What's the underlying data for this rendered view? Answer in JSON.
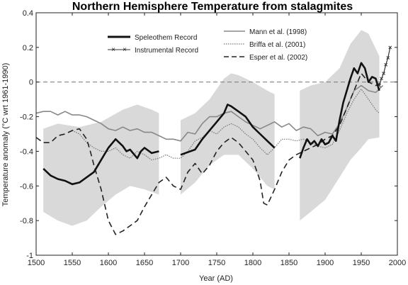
{
  "chart_data": {
    "type": "line",
    "title": "Northern Hemisphere Temperature from stalagmites",
    "xlabel": "Year (AD)",
    "ylabel": "Temperature anomaly (°C wrt 1961-1990)",
    "xlim": [
      1500,
      2000
    ],
    "ylim": [
      -1,
      0.4
    ],
    "xticks": [
      1500,
      1550,
      1600,
      1650,
      1700,
      1750,
      1800,
      1850,
      1900,
      1950,
      2000
    ],
    "yticks": [
      0.4,
      0.2,
      0,
      -0.2,
      -0.4,
      -0.6,
      -0.8,
      -1
    ],
    "ytick_labels": [
      "0.4",
      "0.2",
      "0",
      "-0.2",
      "-0.4",
      "-0.6",
      "-0.8",
      "-1"
    ],
    "zero_line": "dashed",
    "grid": false,
    "legend_left": [
      "Speleothem Record",
      "Instrumental Record"
    ],
    "legend_right": [
      "Mann et al. (1998)",
      "Briffa et al. (2001)",
      "Esper et al. (2002)"
    ],
    "uncertainty_bands": [
      {
        "upper": [
          [
            1510,
            -0.27
          ],
          [
            1530,
            -0.24
          ],
          [
            1560,
            -0.26
          ],
          [
            1590,
            -0.23
          ],
          [
            1620,
            -0.16
          ],
          [
            1640,
            -0.13
          ],
          [
            1660,
            -0.16
          ],
          [
            1670,
            -0.18
          ]
        ],
        "lower": [
          [
            1510,
            -0.75
          ],
          [
            1530,
            -0.8
          ],
          [
            1550,
            -0.83
          ],
          [
            1570,
            -0.8
          ],
          [
            1590,
            -0.72
          ],
          [
            1610,
            -0.65
          ],
          [
            1630,
            -0.6
          ],
          [
            1650,
            -0.62
          ],
          [
            1670,
            -0.65
          ]
        ]
      },
      {
        "upper": [
          [
            1700,
            -0.22
          ],
          [
            1720,
            -0.18
          ],
          [
            1740,
            -0.1
          ],
          [
            1760,
            0.02
          ],
          [
            1770,
            0.05
          ],
          [
            1780,
            0.04
          ],
          [
            1800,
            0.0
          ],
          [
            1820,
            -0.05
          ],
          [
            1830,
            -0.07
          ]
        ],
        "lower": [
          [
            1700,
            -0.65
          ],
          [
            1720,
            -0.58
          ],
          [
            1740,
            -0.48
          ],
          [
            1760,
            -0.42
          ],
          [
            1780,
            -0.42
          ],
          [
            1800,
            -0.5
          ],
          [
            1820,
            -0.6
          ],
          [
            1830,
            -0.62
          ]
        ]
      },
      {
        "upper": [
          [
            1865,
            -0.05
          ],
          [
            1880,
            -0.02
          ],
          [
            1900,
            0.0
          ],
          [
            1920,
            0.08
          ],
          [
            1935,
            0.22
          ],
          [
            1950,
            0.3
          ],
          [
            1960,
            0.28
          ],
          [
            1975,
            0.15
          ]
        ],
        "lower": [
          [
            1865,
            -0.8
          ],
          [
            1880,
            -0.75
          ],
          [
            1900,
            -0.68
          ],
          [
            1920,
            -0.55
          ],
          [
            1935,
            -0.45
          ],
          [
            1950,
            -0.38
          ],
          [
            1960,
            -0.33
          ],
          [
            1975,
            -0.32
          ]
        ]
      }
    ],
    "series": [
      {
        "name": "Speleothem Record",
        "style": "bold-solid",
        "color": "#111111",
        "points": [
          [
            1510,
            -0.5
          ],
          [
            1520,
            -0.54
          ],
          [
            1530,
            -0.56
          ],
          [
            1540,
            -0.57
          ],
          [
            1550,
            -0.59
          ],
          [
            1560,
            -0.58
          ],
          [
            1570,
            -0.55
          ],
          [
            1580,
            -0.52
          ],
          [
            1590,
            -0.45
          ],
          [
            1600,
            -0.38
          ],
          [
            1610,
            -0.33
          ],
          [
            1620,
            -0.37
          ],
          [
            1625,
            -0.4
          ],
          [
            1630,
            -0.39
          ],
          [
            1640,
            -0.44
          ],
          [
            1645,
            -0.4
          ],
          [
            1650,
            -0.38
          ],
          [
            1660,
            -0.41
          ],
          [
            1670,
            -0.4
          ]
        ]
      },
      {
        "name": "Speleothem Record",
        "style": "bold-solid",
        "color": "#111111",
        "points": [
          [
            1700,
            -0.42
          ],
          [
            1720,
            -0.39
          ],
          [
            1730,
            -0.33
          ],
          [
            1740,
            -0.28
          ],
          [
            1750,
            -0.23
          ],
          [
            1760,
            -0.18
          ],
          [
            1765,
            -0.13
          ],
          [
            1770,
            -0.14
          ],
          [
            1780,
            -0.17
          ],
          [
            1790,
            -0.2
          ],
          [
            1800,
            -0.26
          ],
          [
            1810,
            -0.3
          ],
          [
            1820,
            -0.34
          ],
          [
            1830,
            -0.38
          ]
        ]
      },
      {
        "name": "Speleothem Record",
        "style": "bold-solid",
        "color": "#111111",
        "points": [
          [
            1865,
            -0.44
          ],
          [
            1870,
            -0.38
          ],
          [
            1875,
            -0.33
          ],
          [
            1880,
            -0.36
          ],
          [
            1885,
            -0.34
          ],
          [
            1890,
            -0.37
          ],
          [
            1895,
            -0.33
          ],
          [
            1900,
            -0.36
          ],
          [
            1905,
            -0.35
          ],
          [
            1910,
            -0.31
          ],
          [
            1915,
            -0.34
          ],
          [
            1920,
            -0.22
          ],
          [
            1925,
            -0.12
          ],
          [
            1930,
            -0.05
          ],
          [
            1935,
            0.02
          ],
          [
            1940,
            0.08
          ],
          [
            1945,
            0.05
          ],
          [
            1950,
            0.11
          ],
          [
            1955,
            0.08
          ],
          [
            1960,
            0.0
          ],
          [
            1965,
            0.03
          ],
          [
            1970,
            0.02
          ],
          [
            1975,
            -0.05
          ]
        ]
      },
      {
        "name": "Mann et al. (1998)",
        "style": "thin-gray",
        "color": "#888888",
        "points": [
          [
            1500,
            -0.18
          ],
          [
            1510,
            -0.17
          ],
          [
            1520,
            -0.17
          ],
          [
            1530,
            -0.19
          ],
          [
            1540,
            -0.17
          ],
          [
            1550,
            -0.19
          ],
          [
            1560,
            -0.19
          ],
          [
            1570,
            -0.2
          ],
          [
            1580,
            -0.22
          ],
          [
            1590,
            -0.24
          ],
          [
            1600,
            -0.27
          ],
          [
            1610,
            -0.28
          ],
          [
            1620,
            -0.26
          ],
          [
            1630,
            -0.28
          ],
          [
            1640,
            -0.27
          ],
          [
            1650,
            -0.29
          ],
          [
            1660,
            -0.29
          ],
          [
            1670,
            -0.31
          ],
          [
            1680,
            -0.33
          ],
          [
            1690,
            -0.33
          ],
          [
            1700,
            -0.34
          ],
          [
            1710,
            -0.29
          ],
          [
            1720,
            -0.3
          ],
          [
            1730,
            -0.24
          ],
          [
            1740,
            -0.2
          ],
          [
            1750,
            -0.2
          ],
          [
            1760,
            -0.18
          ],
          [
            1770,
            -0.17
          ],
          [
            1780,
            -0.2
          ],
          [
            1790,
            -0.23
          ],
          [
            1800,
            -0.25
          ],
          [
            1810,
            -0.27
          ],
          [
            1820,
            -0.25
          ],
          [
            1830,
            -0.23
          ],
          [
            1840,
            -0.26
          ],
          [
            1850,
            -0.24
          ],
          [
            1860,
            -0.28
          ],
          [
            1870,
            -0.26
          ],
          [
            1880,
            -0.27
          ],
          [
            1890,
            -0.31
          ],
          [
            1900,
            -0.29
          ],
          [
            1910,
            -0.3
          ],
          [
            1920,
            -0.24
          ],
          [
            1930,
            -0.15
          ],
          [
            1940,
            -0.05
          ],
          [
            1950,
            -0.02
          ],
          [
            1960,
            -0.05
          ],
          [
            1970,
            -0.06
          ],
          [
            1980,
            -0.02
          ]
        ]
      },
      {
        "name": "Briffa et al. (2001)",
        "style": "dotted",
        "color": "#777777",
        "points": [
          [
            1550,
            -0.28
          ],
          [
            1560,
            -0.3
          ],
          [
            1570,
            -0.35
          ],
          [
            1580,
            -0.38
          ],
          [
            1590,
            -0.4
          ],
          [
            1600,
            -0.4
          ],
          [
            1610,
            -0.38
          ],
          [
            1620,
            -0.42
          ],
          [
            1630,
            -0.44
          ],
          [
            1640,
            -0.4
          ],
          [
            1650,
            -0.42
          ],
          [
            1660,
            -0.45
          ],
          [
            1670,
            -0.44
          ],
          [
            1680,
            -0.42
          ],
          [
            1690,
            -0.44
          ],
          [
            1700,
            -0.44
          ],
          [
            1710,
            -0.4
          ],
          [
            1720,
            -0.34
          ],
          [
            1730,
            -0.32
          ],
          [
            1740,
            -0.28
          ],
          [
            1750,
            -0.3
          ],
          [
            1760,
            -0.26
          ],
          [
            1770,
            -0.24
          ],
          [
            1780,
            -0.26
          ],
          [
            1790,
            -0.3
          ],
          [
            1800,
            -0.33
          ],
          [
            1810,
            -0.38
          ],
          [
            1820,
            -0.42
          ],
          [
            1830,
            -0.38
          ],
          [
            1840,
            -0.33
          ],
          [
            1850,
            -0.33
          ],
          [
            1860,
            -0.34
          ],
          [
            1870,
            -0.33
          ],
          [
            1880,
            -0.35
          ],
          [
            1890,
            -0.37
          ],
          [
            1900,
            -0.38
          ],
          [
            1910,
            -0.36
          ],
          [
            1920,
            -0.28
          ],
          [
            1930,
            -0.18
          ],
          [
            1940,
            -0.1
          ],
          [
            1950,
            -0.04
          ],
          [
            1960,
            -0.1
          ],
          [
            1970,
            -0.16
          ],
          [
            1975,
            -0.18
          ]
        ]
      },
      {
        "name": "Esper et al. (2002)",
        "style": "dashed",
        "color": "#222222",
        "points": [
          [
            1500,
            -0.32
          ],
          [
            1510,
            -0.35
          ],
          [
            1520,
            -0.35
          ],
          [
            1530,
            -0.31
          ],
          [
            1540,
            -0.3
          ],
          [
            1550,
            -0.28
          ],
          [
            1560,
            -0.27
          ],
          [
            1570,
            -0.33
          ],
          [
            1575,
            -0.4
          ],
          [
            1580,
            -0.48
          ],
          [
            1590,
            -0.62
          ],
          [
            1600,
            -0.8
          ],
          [
            1610,
            -0.88
          ],
          [
            1620,
            -0.86
          ],
          [
            1630,
            -0.83
          ],
          [
            1640,
            -0.8
          ],
          [
            1650,
            -0.72
          ],
          [
            1660,
            -0.65
          ],
          [
            1670,
            -0.58
          ],
          [
            1680,
            -0.55
          ],
          [
            1690,
            -0.6
          ],
          [
            1700,
            -0.62
          ],
          [
            1710,
            -0.52
          ],
          [
            1720,
            -0.47
          ],
          [
            1730,
            -0.53
          ],
          [
            1740,
            -0.48
          ],
          [
            1750,
            -0.4
          ],
          [
            1760,
            -0.35
          ],
          [
            1770,
            -0.32
          ],
          [
            1780,
            -0.35
          ],
          [
            1790,
            -0.4
          ],
          [
            1800,
            -0.45
          ],
          [
            1810,
            -0.57
          ],
          [
            1815,
            -0.7
          ],
          [
            1820,
            -0.71
          ],
          [
            1830,
            -0.62
          ],
          [
            1840,
            -0.52
          ],
          [
            1850,
            -0.45
          ],
          [
            1860,
            -0.42
          ],
          [
            1870,
            -0.4
          ],
          [
            1880,
            -0.38
          ],
          [
            1890,
            -0.36
          ],
          [
            1900,
            -0.33
          ],
          [
            1910,
            -0.31
          ],
          [
            1920,
            -0.25
          ],
          [
            1930,
            -0.15
          ],
          [
            1940,
            -0.05
          ],
          [
            1950,
            0.05
          ],
          [
            1960,
            0.0
          ],
          [
            1970,
            -0.02
          ],
          [
            1980,
            0.0
          ]
        ]
      },
      {
        "name": "Instrumental Record",
        "style": "line-with-x-markers",
        "color": "#333333",
        "points": [
          [
            1975,
            -0.02
          ],
          [
            1978,
            0.02
          ],
          [
            1981,
            0.05
          ],
          [
            1984,
            0.1
          ],
          [
            1987,
            0.14
          ],
          [
            1990,
            0.2
          ]
        ]
      }
    ]
  }
}
